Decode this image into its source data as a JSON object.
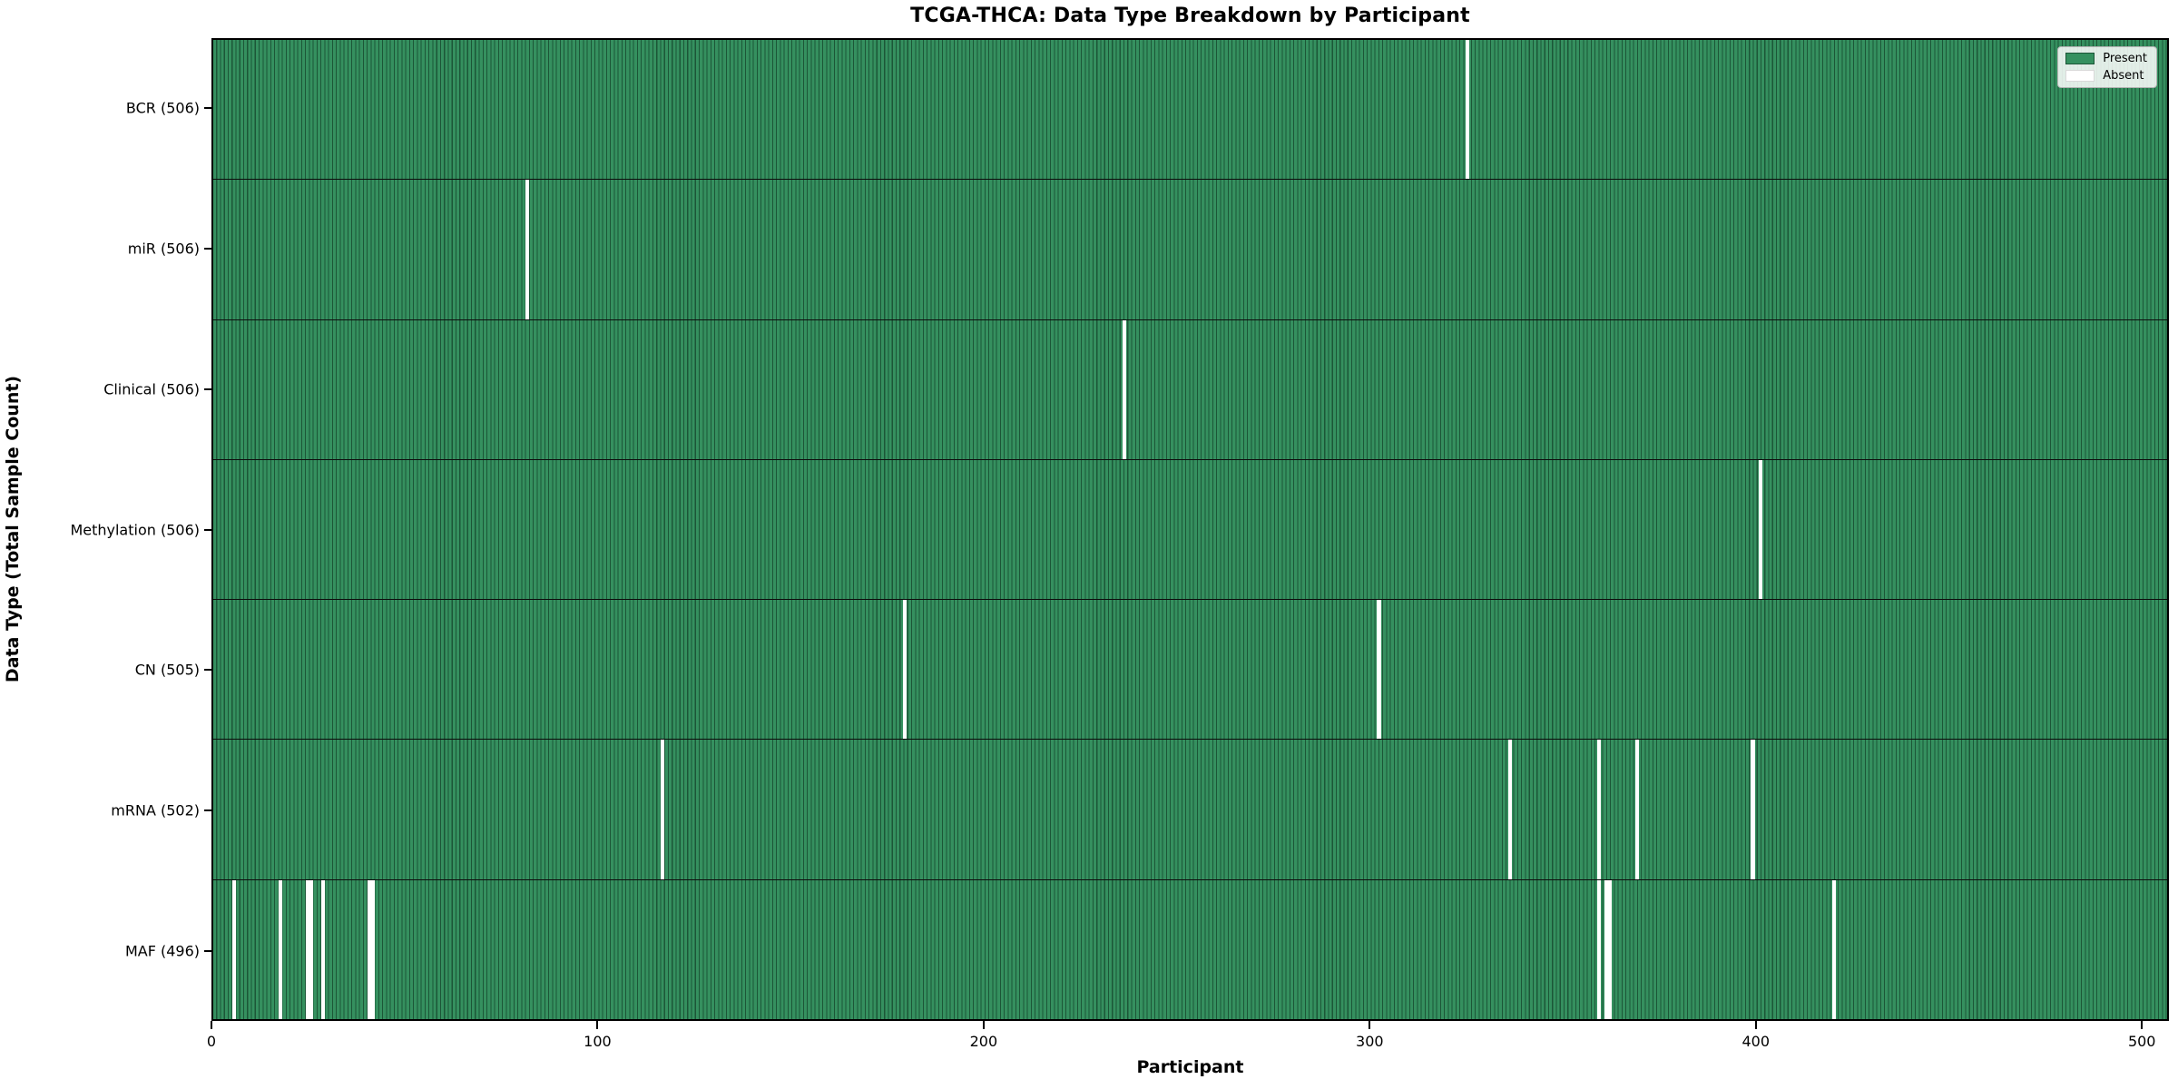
{
  "title": "TCGA-THCA: Data Type Breakdown by Participant",
  "xlabel": "Participant",
  "ylabel": "Data Type (Total Sample Count)",
  "legend": {
    "present_label": "Present",
    "absent_label": "Absent"
  },
  "colors": {
    "present_fill": "#35905F",
    "bar_edge": "#1C5637",
    "absent_fill": "#FFFFFF",
    "axis": "#000000"
  },
  "chart_data": {
    "type": "heatmap",
    "title": "TCGA-THCA: Data Type Breakdown by Participant",
    "xlabel": "Participant",
    "ylabel": "Data Type (Total Sample Count)",
    "n_participants": 507,
    "xlim": [
      0,
      507
    ],
    "x_ticks": [
      0,
      100,
      200,
      300,
      400,
      500
    ],
    "legend_position": "upper right",
    "grid": false,
    "rows": [
      {
        "data_type": "BCR",
        "label": "BCR (506)",
        "present_count": 506,
        "absent_participants": [
          325
        ]
      },
      {
        "data_type": "miR",
        "label": "miR (506)",
        "present_count": 506,
        "absent_participants": [
          81
        ]
      },
      {
        "data_type": "Clinical",
        "label": "Clinical (506)",
        "present_count": 506,
        "absent_participants": [
          236
        ]
      },
      {
        "data_type": "Methylation",
        "label": "Methylation (506)",
        "present_count": 506,
        "absent_participants": [
          401
        ]
      },
      {
        "data_type": "CN",
        "label": "CN (505)",
        "present_count": 505,
        "absent_participants": [
          179,
          302
        ]
      },
      {
        "data_type": "mRNA",
        "label": "mRNA (502)",
        "present_count": 502,
        "absent_participants": [
          116,
          336,
          359,
          369,
          399
        ]
      },
      {
        "data_type": "MAF",
        "label": "MAF (496)",
        "present_count": 496,
        "absent_participants": [
          5,
          17,
          24,
          25,
          28,
          40,
          41,
          359,
          361,
          362,
          420
        ]
      }
    ]
  }
}
